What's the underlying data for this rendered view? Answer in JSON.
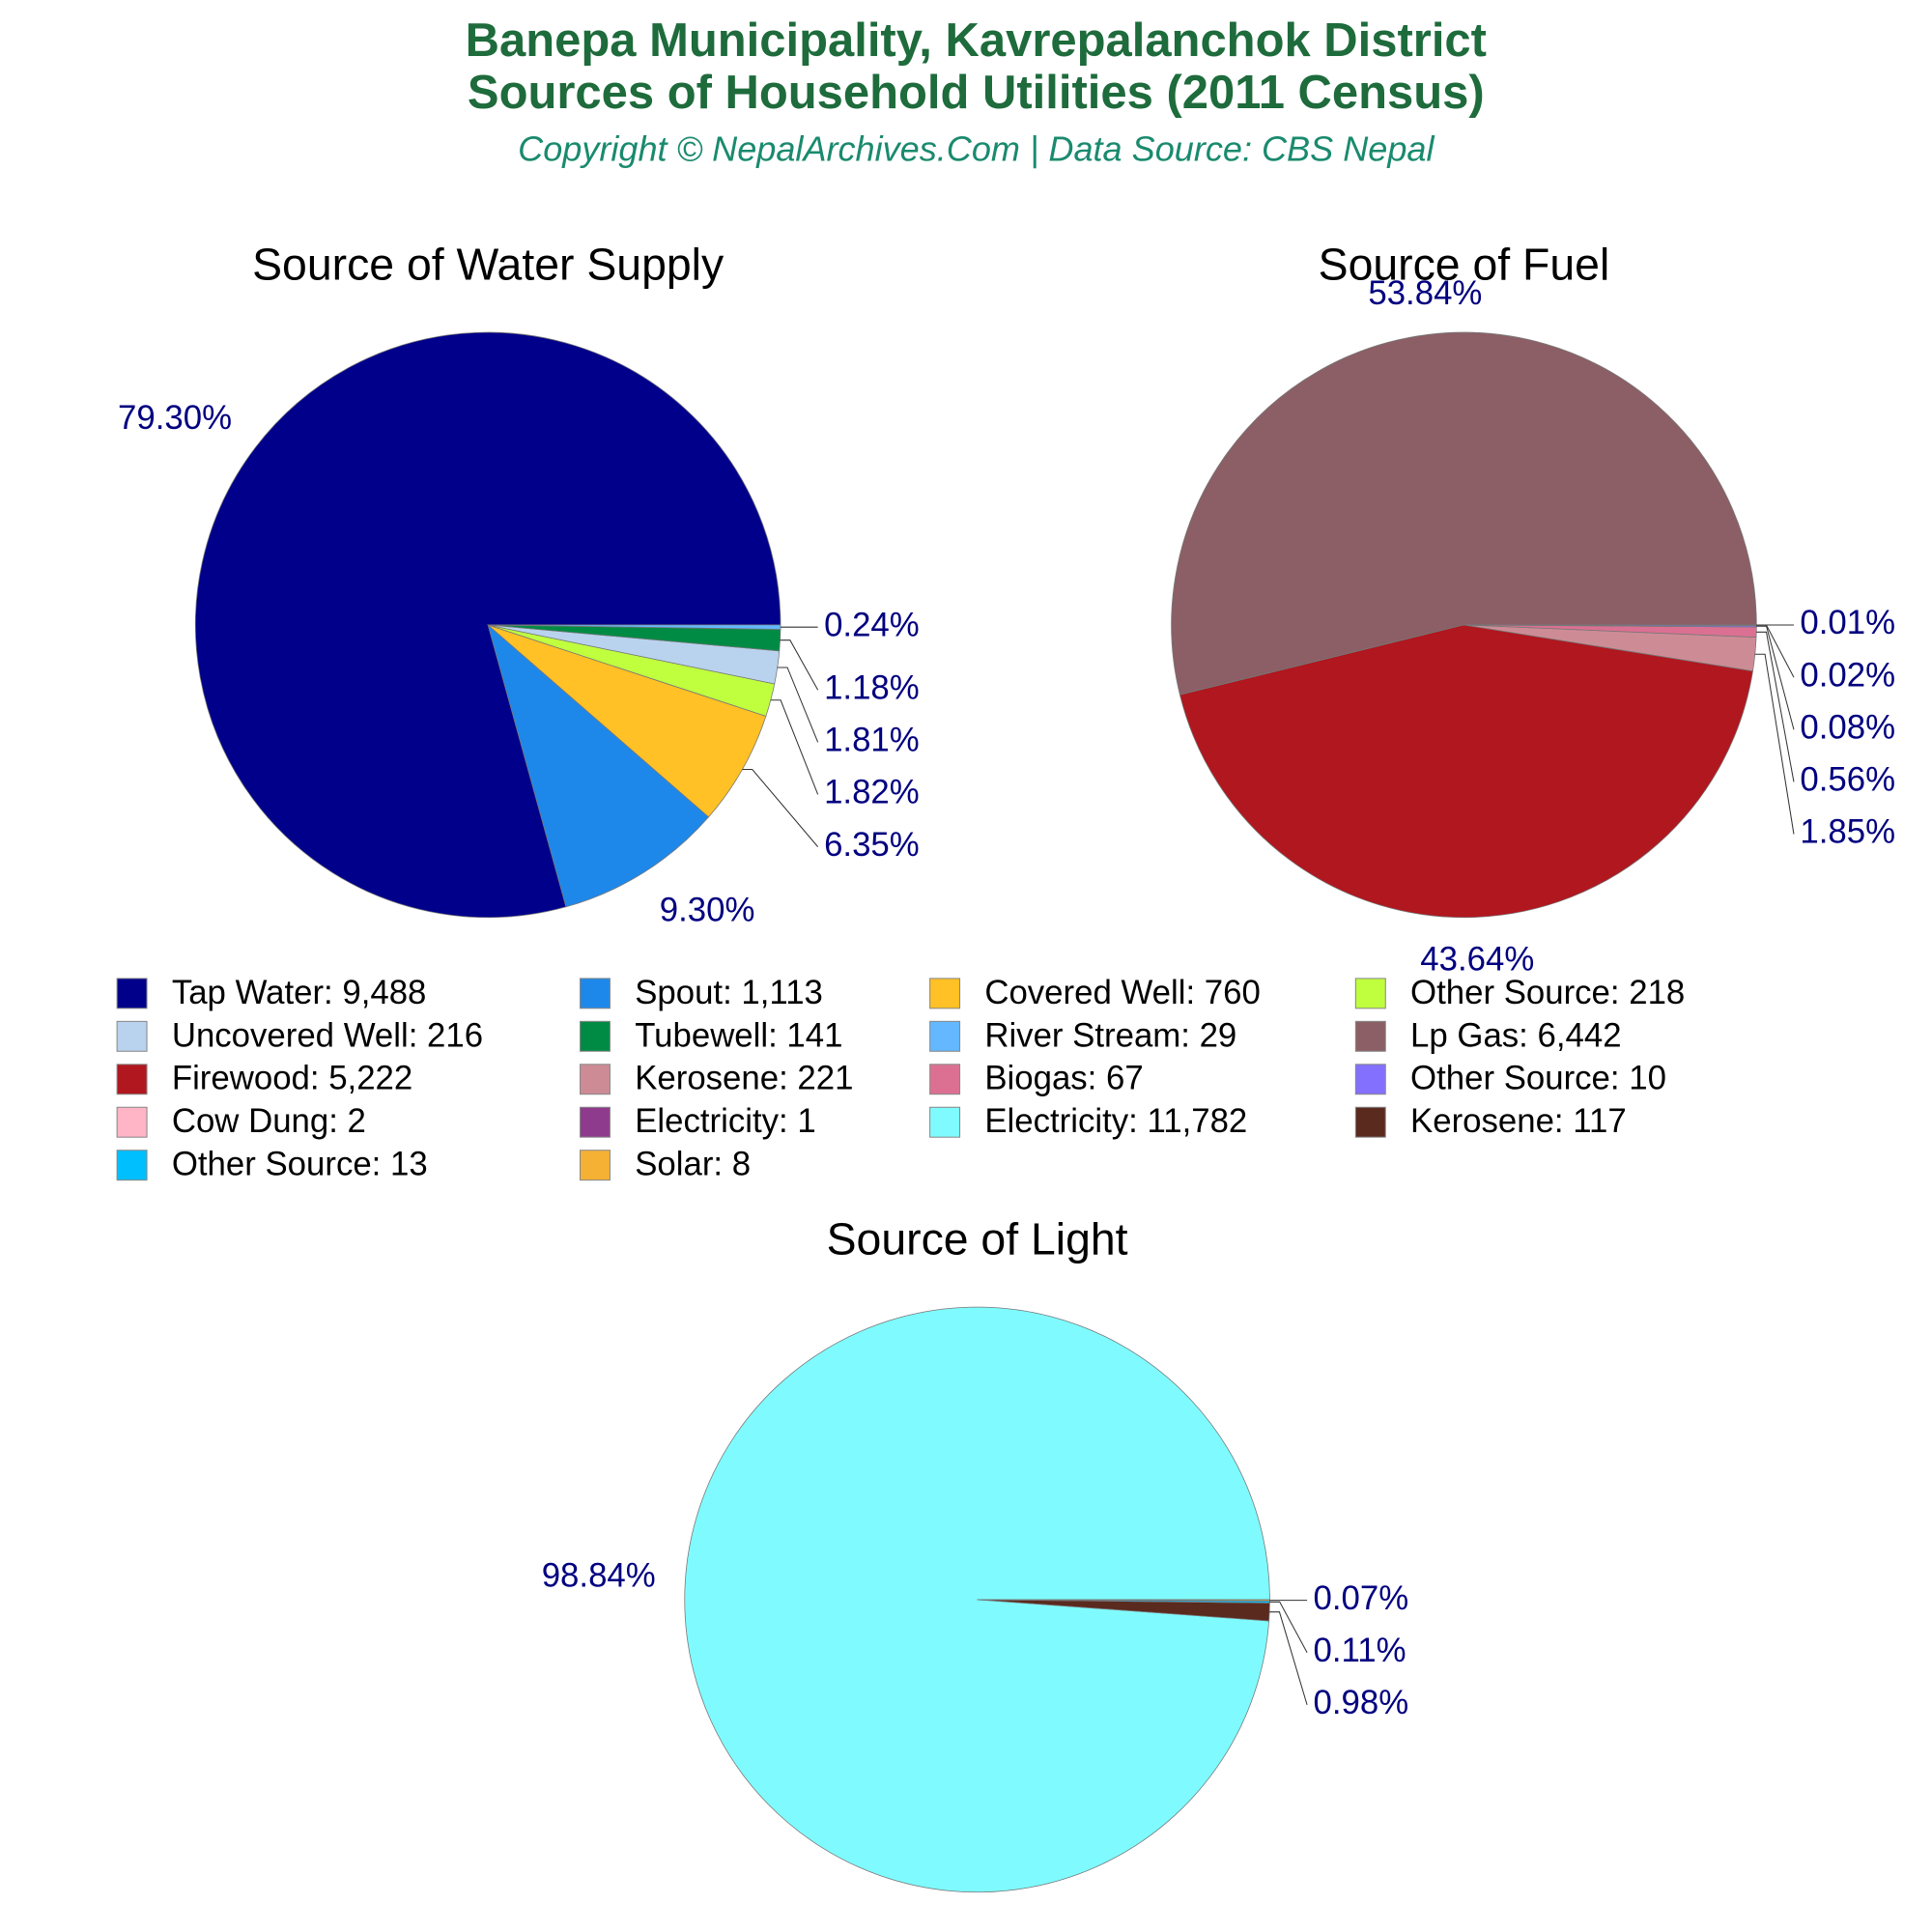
{
  "header": {
    "title": [
      "Banepa Municipality, Kavrepalanchok District",
      "Sources of Household Utilities (2011 Census)"
    ],
    "subtitle": "Copyright © NepalArchives.Com | Data Source: CBS Nepal"
  },
  "chart_data": [
    {
      "type": "pie",
      "title": "Source of Water Supply",
      "categories": [
        "Tap Water: 9,488",
        "Spout: 1,113",
        "Covered Well: 760",
        "Other Source: 218",
        "Uncovered Well: 216",
        "Tubewell: 141",
        "River Stream: 29"
      ],
      "values": [
        79.3,
        9.3,
        6.35,
        1.82,
        1.81,
        1.18,
        0.24
      ],
      "value_labels": [
        "79.30%",
        "9.30%",
        "6.35%",
        "1.82%",
        "1.81%",
        "1.18%",
        "0.24%"
      ],
      "colors": [
        "#00008B",
        "#1E88EA",
        "#FFC125",
        "#C0FF3E",
        "#B9D3EE",
        "#008B45",
        "#63B8FF"
      ]
    },
    {
      "type": "pie",
      "title": "Source of Fuel",
      "categories": [
        "Lp Gas: 6,442",
        "Firewood: 5,222",
        "Kerosene: 221",
        "Biogas: 67",
        "Other Source: 10",
        "Cow Dung: 2",
        "Electricity: 1"
      ],
      "values": [
        53.84,
        43.64,
        1.85,
        0.56,
        0.08,
        0.02,
        0.01
      ],
      "value_labels": [
        "53.84%",
        "43.64%",
        "1.85%",
        "0.56%",
        "0.08%",
        "0.02%",
        "0.01%"
      ],
      "colors": [
        "#8B5F65",
        "#B0171F",
        "#CD8C95",
        "#DB7093",
        "#8470FF",
        "#FFB5C5",
        "#8E3B8E"
      ]
    },
    {
      "type": "pie",
      "title": "Source of Light",
      "categories": [
        "Electricity: 11,782",
        "Kerosene: 117",
        "Other Source: 13",
        "Solar: 8"
      ],
      "values": [
        98.84,
        0.98,
        0.11,
        0.07
      ],
      "value_labels": [
        "98.84%",
        "0.98%",
        "0.11%",
        "0.07%"
      ],
      "colors": [
        "#7FFBFF",
        "#5A2A1F",
        "#00BFFF",
        "#F5B134"
      ]
    }
  ]
}
